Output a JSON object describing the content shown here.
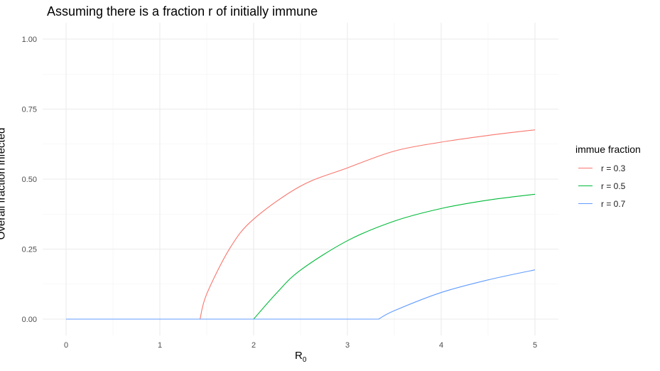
{
  "chart_data": {
    "type": "line",
    "title": "Assuming there is a fraction r of initially immune",
    "xlabel_main": "R",
    "xlabel_sub": "0",
    "ylabel": "Overall fraction infected",
    "xlim": [
      0,
      5
    ],
    "ylim": [
      0,
      1
    ],
    "x_ticks": [
      "0",
      "1",
      "2",
      "3",
      "4",
      "5"
    ],
    "y_ticks": [
      "0.00",
      "0.25",
      "0.50",
      "0.75",
      "1.00"
    ],
    "grid": true,
    "legend_title": "immue fraction",
    "legend_position": "right",
    "series": [
      {
        "name": "r = 0.3",
        "color": "#F8766D",
        "x": [
          0,
          1.4286,
          1.5,
          1.75,
          2.0,
          2.5,
          3.0,
          3.5,
          4.0,
          4.5,
          5.0
        ],
        "y": [
          0,
          0,
          0.09,
          0.255,
          0.357,
          0.475,
          0.54,
          0.6,
          0.632,
          0.656,
          0.676
        ]
      },
      {
        "name": "r = 0.5",
        "color": "#00BA38",
        "x": [
          0,
          2.0,
          2.25,
          2.5,
          3.0,
          3.5,
          4.0,
          4.5,
          5.0
        ],
        "y": [
          0,
          0,
          0.095,
          0.175,
          0.28,
          0.35,
          0.395,
          0.425,
          0.446
        ]
      },
      {
        "name": "r = 0.7",
        "color": "#619CFF",
        "x": [
          0,
          3.3333,
          3.5,
          4.0,
          4.5,
          5.0
        ],
        "y": [
          0,
          0,
          0.03,
          0.095,
          0.14,
          0.176
        ]
      }
    ]
  }
}
